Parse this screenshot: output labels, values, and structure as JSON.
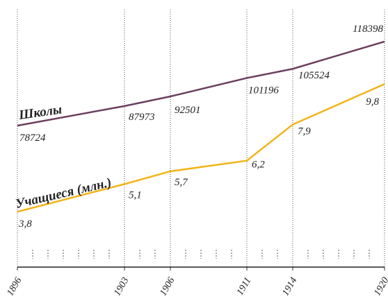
{
  "chart_data": {
    "type": "line",
    "x": [
      1896,
      1903,
      1906,
      1911,
      1914,
      1920
    ],
    "series": [
      {
        "name": "Школы",
        "color": "#6b3e5e",
        "values": [
          78724,
          87973,
          92501,
          101196,
          105524,
          118398
        ]
      },
      {
        "name": "Учащиеся (млн.)",
        "color": "#f2b418",
        "axis": "y2",
        "values": [
          3.8,
          5.1,
          5.7,
          6.2,
          7.9,
          9.8
        ],
        "value_labels": [
          "3,8",
          "5,1",
          "5,7",
          "6,2",
          "7,9",
          "9,8"
        ]
      }
    ],
    "xlim": [
      1896,
      1920
    ],
    "xticks": [
      1896,
      1903,
      1906,
      1911,
      1914,
      1920
    ],
    "minor_xticks": [
      1897,
      1898,
      1899,
      1900,
      1901,
      1902,
      1904,
      1905,
      1907,
      1908,
      1909,
      1910,
      1912,
      1913,
      1915,
      1916,
      1917,
      1918,
      1919
    ],
    "ylim": [
      12000,
      138000
    ],
    "y2lim": [
      1.2,
      13.75
    ],
    "grid": true
  }
}
